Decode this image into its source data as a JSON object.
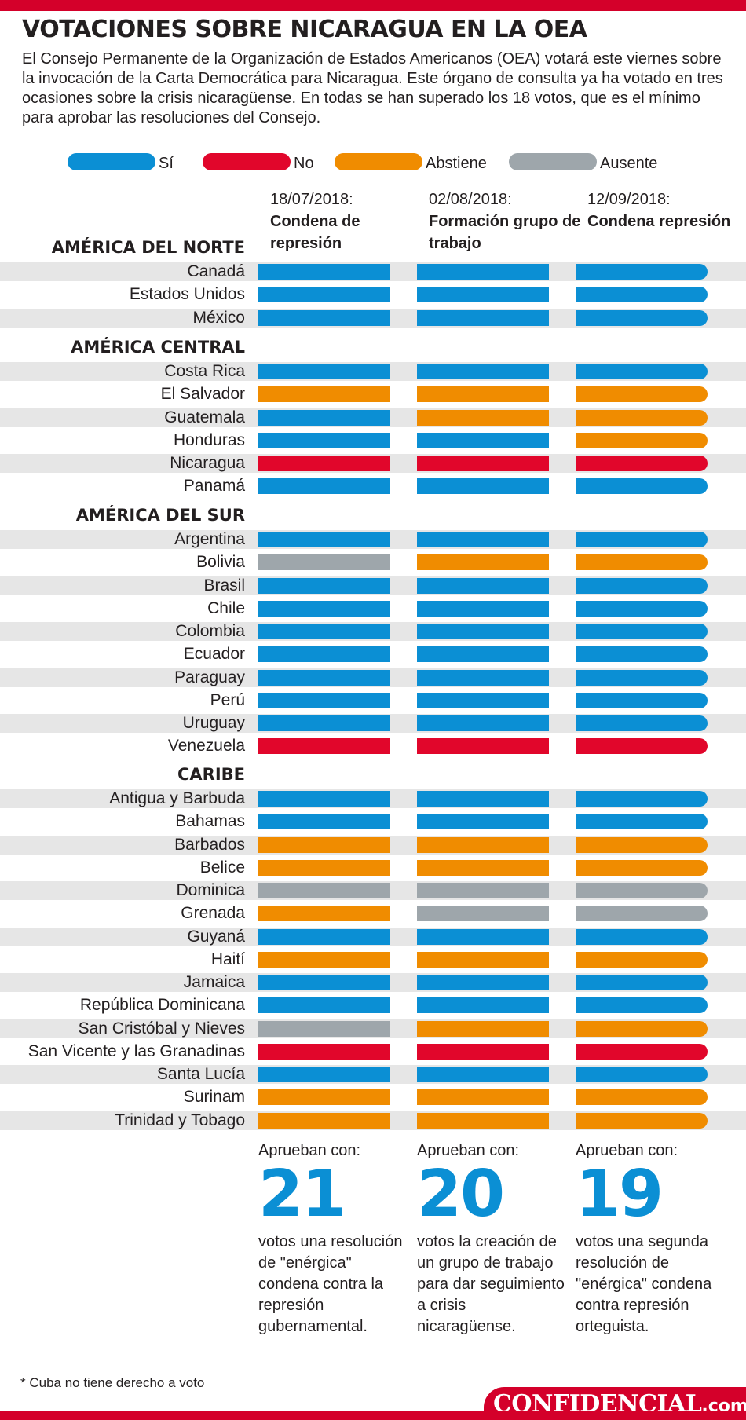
{
  "page": {
    "title": "VOTACIONES SOBRE NICARAGUA EN LA OEA",
    "intro": "El Consejo Permanente de la Organización de Estados Americanos (OEA) votará este viernes sobre la invocación de la Carta Democrática para Nicaragua. Este órgano de consulta ya ha votado en tres ocasiones sobre la crisis nicaragüense. En todas se han superado los 18 votos, que es el mínimo para aprobar las resoluciones del Consejo.",
    "footnote": "* Cuba no tiene derecho a voto",
    "brand": {
      "name": "CONFIDENCIAL",
      "domain": ".com.ni"
    },
    "colors": {
      "accent_red": "#d4002a",
      "text": "#231f20",
      "row_shade": "#e6e6e6",
      "result_number": "#0b8fd4"
    }
  },
  "chart_data": {
    "type": "table",
    "title": "VOTACIONES SOBRE NICARAGUA EN LA OEA",
    "legend": [
      {
        "key": "si",
        "label": "Sí",
        "color": "#0b8fd4"
      },
      {
        "key": "no",
        "label": "No",
        "color": "#e1062b"
      },
      {
        "key": "abstiene",
        "label": "Abstiene",
        "color": "#f08c00"
      },
      {
        "key": "ausente",
        "label": "Ausente",
        "color": "#9ea6ab"
      }
    ],
    "votes": [
      {
        "date": "18/07/2018:",
        "title": "Condena de represión",
        "result_label": "Aprueban con:",
        "result_count": "21",
        "result_text": "votos una resolución de \"enérgica\" condena contra la represión gubernamental."
      },
      {
        "date": "02/08/2018:",
        "title": "Formación grupo de trabajo",
        "result_label": "Aprueban con:",
        "result_count": "20",
        "result_text": "votos la creación de un grupo de trabajo para dar seguimiento a crisis nicaragüense."
      },
      {
        "date": "12/09/2018:",
        "title": "Condena represión",
        "result_label": "Aprueban con:",
        "result_count": "19",
        "result_text": "votos una segunda resolución de \"enérgica\" condena contra represión orteguista."
      }
    ],
    "regions": [
      {
        "name": "AMÉRICA DEL NORTE",
        "countries": [
          {
            "name": "Canadá",
            "votes": [
              "si",
              "si",
              "si"
            ]
          },
          {
            "name": "Estados Unidos",
            "votes": [
              "si",
              "si",
              "si"
            ]
          },
          {
            "name": "México",
            "votes": [
              "si",
              "si",
              "si"
            ]
          }
        ]
      },
      {
        "name": "AMÉRICA CENTRAL",
        "countries": [
          {
            "name": "Costa Rica",
            "votes": [
              "si",
              "si",
              "si"
            ]
          },
          {
            "name": "El Salvador",
            "votes": [
              "abstiene",
              "abstiene",
              "abstiene"
            ]
          },
          {
            "name": "Guatemala",
            "votes": [
              "si",
              "abstiene",
              "abstiene"
            ]
          },
          {
            "name": "Honduras",
            "votes": [
              "si",
              "si",
              "abstiene"
            ]
          },
          {
            "name": "Nicaragua",
            "votes": [
              "no",
              "no",
              "no"
            ]
          },
          {
            "name": "Panamá",
            "votes": [
              "si",
              "si",
              "si"
            ]
          }
        ]
      },
      {
        "name": "AMÉRICA DEL SUR",
        "countries": [
          {
            "name": "Argentina",
            "votes": [
              "si",
              "si",
              "si"
            ]
          },
          {
            "name": "Bolivia",
            "votes": [
              "ausente",
              "abstiene",
              "abstiene"
            ]
          },
          {
            "name": "Brasil",
            "votes": [
              "si",
              "si",
              "si"
            ]
          },
          {
            "name": "Chile",
            "votes": [
              "si",
              "si",
              "si"
            ]
          },
          {
            "name": "Colombia",
            "votes": [
              "si",
              "si",
              "si"
            ]
          },
          {
            "name": "Ecuador",
            "votes": [
              "si",
              "si",
              "si"
            ]
          },
          {
            "name": "Paraguay",
            "votes": [
              "si",
              "si",
              "si"
            ]
          },
          {
            "name": "Perú",
            "votes": [
              "si",
              "si",
              "si"
            ]
          },
          {
            "name": "Uruguay",
            "votes": [
              "si",
              "si",
              "si"
            ]
          },
          {
            "name": "Venezuela",
            "votes": [
              "no",
              "no",
              "no"
            ]
          }
        ]
      },
      {
        "name": "CARIBE",
        "countries": [
          {
            "name": "Antigua y Barbuda",
            "votes": [
              "si",
              "si",
              "si"
            ]
          },
          {
            "name": "Bahamas",
            "votes": [
              "si",
              "si",
              "si"
            ]
          },
          {
            "name": "Barbados",
            "votes": [
              "abstiene",
              "abstiene",
              "abstiene"
            ]
          },
          {
            "name": "Belice",
            "votes": [
              "abstiene",
              "abstiene",
              "abstiene"
            ]
          },
          {
            "name": "Dominica",
            "votes": [
              "ausente",
              "ausente",
              "ausente"
            ]
          },
          {
            "name": "Grenada",
            "votes": [
              "abstiene",
              "ausente",
              "ausente"
            ]
          },
          {
            "name": "Guyaná",
            "votes": [
              "si",
              "si",
              "si"
            ]
          },
          {
            "name": "Haití",
            "votes": [
              "abstiene",
              "abstiene",
              "abstiene"
            ]
          },
          {
            "name": "Jamaica",
            "votes": [
              "si",
              "si",
              "si"
            ]
          },
          {
            "name": "República Dominicana",
            "votes": [
              "si",
              "si",
              "si"
            ]
          },
          {
            "name": "San Cristóbal y Nieves",
            "votes": [
              "ausente",
              "abstiene",
              "abstiene"
            ]
          },
          {
            "name": "San Vicente y las Granadinas",
            "votes": [
              "no",
              "no",
              "no"
            ]
          },
          {
            "name": "Santa Lucía",
            "votes": [
              "si",
              "si",
              "si"
            ]
          },
          {
            "name": "Surinam",
            "votes": [
              "abstiene",
              "abstiene",
              "abstiene"
            ]
          },
          {
            "name": "Trinidad y Tobago",
            "votes": [
              "abstiene",
              "abstiene",
              "abstiene"
            ]
          }
        ]
      }
    ]
  }
}
